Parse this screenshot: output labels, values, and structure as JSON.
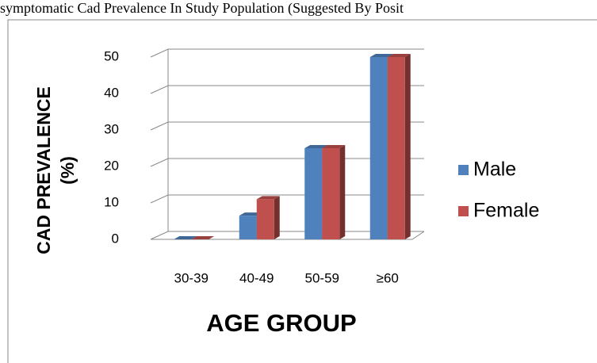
{
  "chart_data": {
    "type": "bar3d",
    "title": "symptomatic Cad Prevalence In Study Population (Suggested By Posit",
    "x_label": "AGE GROUP",
    "y_label": "CAD PREVALENCE (%)",
    "categories": [
      "30-39",
      "40-49",
      "50-59",
      "≥60"
    ],
    "series": [
      {
        "name": "Male",
        "color": "#4f81bd",
        "values": [
          0,
          6.5,
          25,
          50
        ]
      },
      {
        "name": "Female",
        "color": "#c0504d",
        "values": [
          0,
          11,
          25,
          50
        ]
      }
    ],
    "ylim": [
      0,
      50
    ],
    "yticks": [
      0,
      10,
      20,
      30,
      40,
      50
    ],
    "grid": true,
    "legend": "right"
  }
}
